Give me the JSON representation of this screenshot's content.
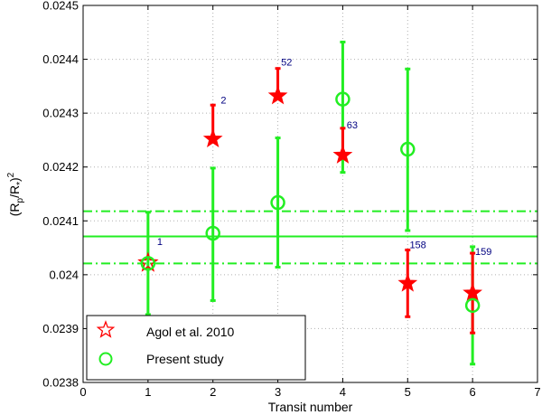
{
  "chart_data": {
    "type": "scatter",
    "xlabel": "Transit number",
    "ylabel_main": "(R",
    "ylabel_sub1": "p",
    "ylabel_mid": "/R",
    "ylabel_sub2": "*",
    "ylabel_end": ")",
    "ylabel_sup": "2",
    "xlim": [
      0,
      7
    ],
    "ylim": [
      0.0238,
      0.0245
    ],
    "xticks": [
      0,
      1,
      2,
      3,
      4,
      5,
      6,
      7
    ],
    "xtick_labels": [
      "0",
      "1",
      "2",
      "3",
      "4",
      "5",
      "6",
      "7"
    ],
    "yticks": [
      0.0238,
      0.0239,
      0.024,
      0.0241,
      0.0242,
      0.0243,
      0.0244,
      0.0245
    ],
    "ytick_labels": [
      "0.0238",
      "0.0239",
      "0.024",
      "0.0241",
      "0.0242",
      "0.0243",
      "0.0244",
      "0.0245"
    ],
    "grid": true,
    "legend_position": "bottom-left",
    "series": [
      {
        "name": "Agol et al. 2010",
        "marker": "star",
        "color": "#ff0000",
        "x": [
          1,
          2,
          3,
          4,
          5,
          6
        ],
        "y": [
          0.024022,
          0.024252,
          0.024332,
          0.024222,
          0.023984,
          0.023966
        ],
        "err_low": [
          0.024022,
          0.024252,
          0.024332,
          0.024222,
          0.023922,
          0.023892
        ],
        "err_high": [
          0.024022,
          0.024315,
          0.024383,
          0.024272,
          0.024046,
          0.02404
        ]
      },
      {
        "name": "Present study",
        "marker": "circle",
        "color": "#22ee22",
        "x": [
          1,
          2,
          3,
          4,
          5,
          6
        ],
        "y": [
          0.024021,
          0.024077,
          0.024134,
          0.024326,
          0.024233,
          0.023943
        ],
        "err_low": [
          0.023926,
          0.023952,
          0.024014,
          0.02419,
          0.024082,
          0.023834
        ],
        "err_high": [
          0.024116,
          0.024198,
          0.024254,
          0.024432,
          0.024382,
          0.024052
        ]
      }
    ],
    "hlines": [
      {
        "y": 0.024071,
        "style": "solid",
        "color": "#22ee22"
      },
      {
        "y": 0.024118,
        "style": "dashdot",
        "color": "#22ee22"
      },
      {
        "y": 0.024021,
        "style": "dashdot",
        "color": "#22ee22"
      }
    ],
    "annotations": [
      {
        "text": "1",
        "x": 1.14,
        "y": 0.024055
      },
      {
        "text": "2",
        "x": 2.12,
        "y": 0.024318
      },
      {
        "text": "52",
        "x": 3.05,
        "y": 0.024388
      },
      {
        "text": "63",
        "x": 4.06,
        "y": 0.024272
      },
      {
        "text": "158",
        "x": 5.03,
        "y": 0.024049
      },
      {
        "text": "159",
        "x": 6.04,
        "y": 0.024037
      }
    ]
  }
}
